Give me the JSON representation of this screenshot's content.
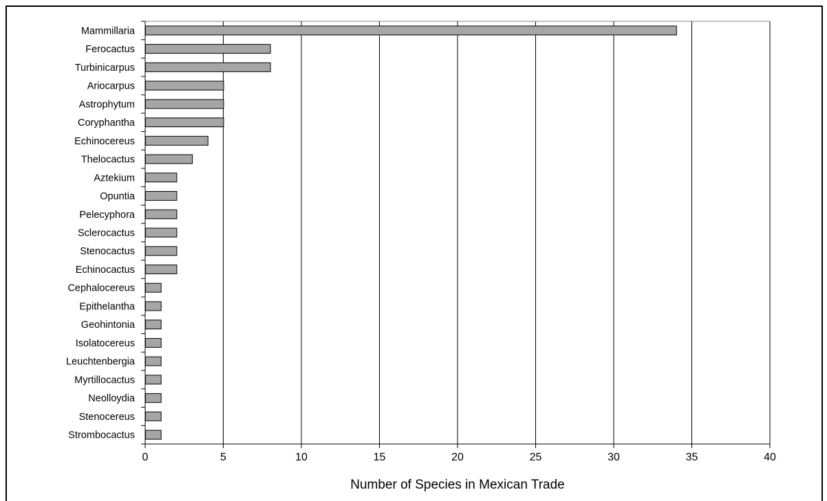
{
  "chart_data": {
    "type": "bar",
    "orientation": "horizontal",
    "title": "",
    "xlabel": "Number of Species in Mexican Trade",
    "ylabel": "",
    "xlim": [
      0,
      40
    ],
    "xticks": [
      "0",
      "5",
      "10",
      "15",
      "20",
      "25",
      "30",
      "35",
      "40"
    ],
    "grid": "vertical gridlines on major x ticks",
    "legend": "none",
    "bar_color": "#a6a6a6",
    "categories": [
      "Mammillaria",
      "Ferocactus",
      "Turbinicarpus",
      "Ariocarpus",
      "Astrophytum",
      "Coryphantha",
      "Echinocereus",
      "Thelocactus",
      "Aztekium",
      "Opuntia",
      "Pelecyphora",
      "Sclerocactus",
      "Stenocactus",
      "Echinocactus",
      "Cephalocereus",
      "Epithelantha",
      "Geohintonia",
      "Isolatocereus",
      "Leuchtenbergia",
      "Myrtillocactus",
      "Neolloydia",
      "Stenocereus",
      "Strombocactus"
    ],
    "values": [
      34,
      8,
      8,
      5,
      5,
      5,
      4,
      3,
      2,
      2,
      2,
      2,
      2,
      2,
      1,
      1,
      1,
      1,
      1,
      1,
      1,
      1,
      1
    ]
  }
}
